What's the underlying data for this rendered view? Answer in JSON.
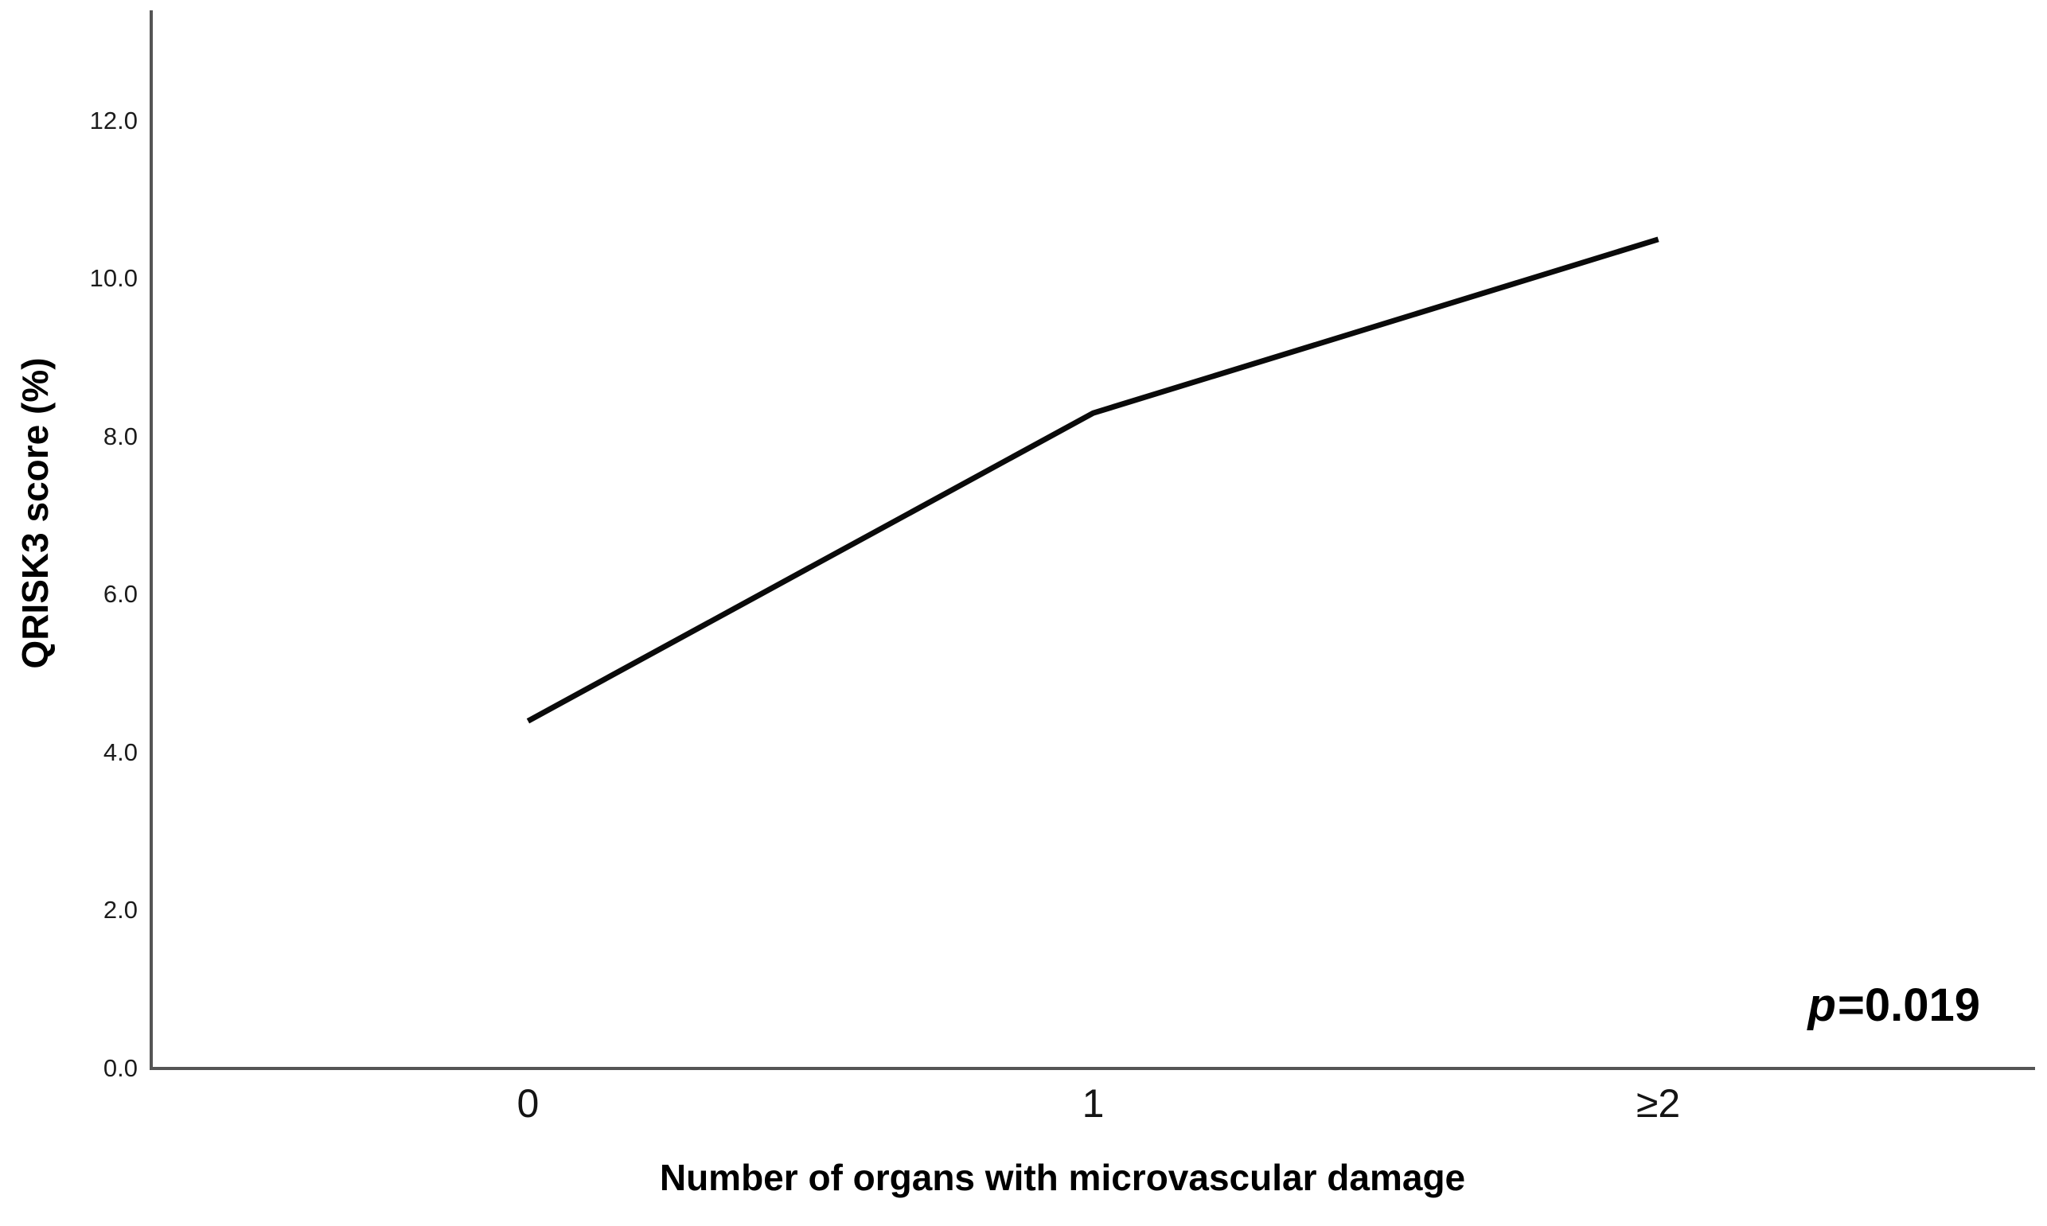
{
  "chart_data": {
    "type": "line",
    "categories": [
      "0",
      "1",
      "≥2"
    ],
    "values": [
      4.4,
      8.3,
      10.5
    ],
    "title": "",
    "xlabel": "Number of organs with microvascular damage",
    "ylabel": "QRISK3 score (%)",
    "ylim": [
      0,
      13.4
    ],
    "yticks": [
      0,
      2,
      4,
      6,
      8,
      10,
      12
    ],
    "ytick_labels": [
      "0.0",
      "2.0",
      "4.0",
      "6.0",
      "8.0",
      "10.0",
      "12.0"
    ],
    "annotation": {
      "italic": "p",
      "text": "=0.019"
    },
    "legend": null,
    "grid": false,
    "colors": {
      "line": "#0a0a0a",
      "axis": "#555555",
      "tick_text": "#1c1c1c",
      "label_text": "#000000",
      "background": "#ffffff"
    }
  }
}
